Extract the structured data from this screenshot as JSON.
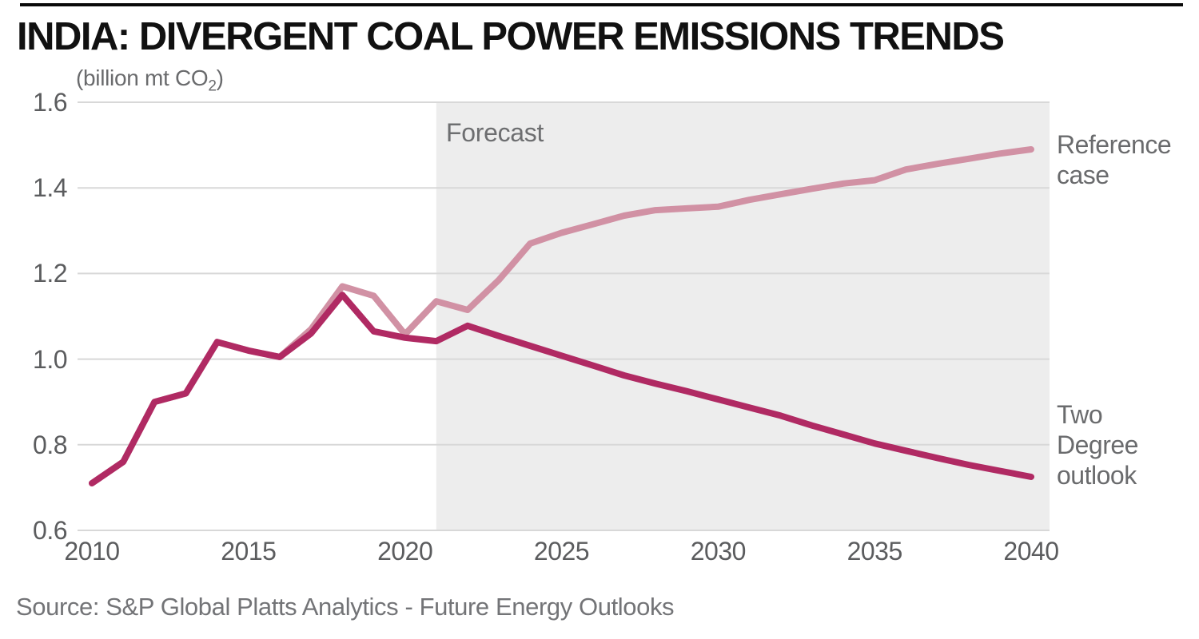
{
  "header": {
    "title": "INDIA: DIVERGENT COAL POWER EMISSIONS TRENDS",
    "unit_pre": "(billion mt CO",
    "unit_sub": "2",
    "unit_post": ")"
  },
  "labels": {
    "forecast": "Forecast",
    "reference_case": "Reference\ncase",
    "two_degree": "Two\nDegree\noutlook"
  },
  "source": "Source: S&P Global Platts Analytics - Future Energy Outlooks",
  "colors": {
    "reference_line": "#d191a4",
    "two_degree_line": "#b02a63",
    "forecast_band": "#ededed",
    "gridline": "#d8d8d8",
    "tick_text": "#5b5c5e"
  },
  "chart_data": {
    "type": "line",
    "title": "INDIA: DIVERGENT COAL POWER EMISSIONS TRENDS",
    "ylabel": "(billion mt CO2)",
    "xlabel": "",
    "ylim": [
      0.6,
      1.6
    ],
    "xlim": [
      2010,
      2040
    ],
    "y_ticks": [
      1.6,
      1.4,
      1.2,
      1.0,
      0.8,
      0.6
    ],
    "x_ticks": [
      2010,
      2015,
      2020,
      2025,
      2030,
      2035,
      2040
    ],
    "grid": "horizontal only",
    "forecast_band_start": 2021,
    "legend_position": "right of lines, inline labels",
    "x": [
      2010,
      2011,
      2012,
      2013,
      2014,
      2015,
      2016,
      2017,
      2018,
      2019,
      2020,
      2021,
      2022,
      2023,
      2024,
      2025,
      2026,
      2027,
      2028,
      2029,
      2030,
      2031,
      2032,
      2033,
      2034,
      2035,
      2036,
      2037,
      2038,
      2039,
      2040
    ],
    "series": [
      {
        "name": "Reference case",
        "color_key": "reference_line",
        "values": [
          0.71,
          0.76,
          0.9,
          0.92,
          1.04,
          1.02,
          1.005,
          1.07,
          1.17,
          1.148,
          1.058,
          1.135,
          1.115,
          1.185,
          1.27,
          1.295,
          1.315,
          1.335,
          1.348,
          1.352,
          1.356,
          1.372,
          1.385,
          1.398,
          1.41,
          1.418,
          1.443,
          1.456,
          1.468,
          1.48,
          1.49
        ]
      },
      {
        "name": "Two Degree outlook",
        "color_key": "two_degree_line",
        "values": [
          0.71,
          0.76,
          0.9,
          0.92,
          1.04,
          1.02,
          1.005,
          1.06,
          1.15,
          1.065,
          1.05,
          1.042,
          1.078,
          1.054,
          1.031,
          1.008,
          0.985,
          0.962,
          0.943,
          0.925,
          0.906,
          0.887,
          0.868,
          0.845,
          0.824,
          0.803,
          0.786,
          0.769,
          0.753,
          0.739,
          0.725
        ]
      }
    ]
  }
}
